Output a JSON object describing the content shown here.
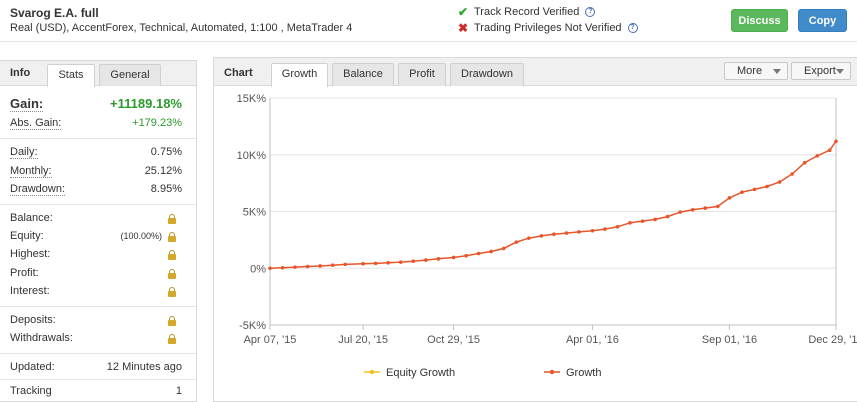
{
  "header": {
    "system_name": "Svarog E.A. full",
    "system_desc": "Real (USD), AccentForex, Technical, Automated, 1:100 , MetaTrader 4",
    "track_record": "Track Record Verified",
    "trading_privileges": "Trading Privileges Not Verified",
    "discuss_label": "Discuss",
    "copy_label": "Copy"
  },
  "left_panel": {
    "title": "Info",
    "tabs": [
      "Stats",
      "General"
    ],
    "gain_label": "Gain:",
    "gain_value": "+11189.18%",
    "abs_gain_label": "Abs. Gain:",
    "abs_gain_value": "+179.23%",
    "daily_label": "Daily:",
    "daily_value": "0.75%",
    "monthly_label": "Monthly:",
    "monthly_value": "25.12%",
    "drawdown_label": "Drawdown:",
    "drawdown_value": "8.95%",
    "balance_label": "Balance:",
    "equity_label": "Equity:",
    "equity_pct": "(100.00%)",
    "highest_label": "Highest:",
    "profit_label": "Profit:",
    "interest_label": "Interest:",
    "deposits_label": "Deposits:",
    "withdrawals_label": "Withdrawals:",
    "updated_label": "Updated:",
    "updated_value": "12 Minutes ago",
    "tracking_label": "Tracking",
    "tracking_value": "1"
  },
  "chart_panel": {
    "title": "Chart",
    "tabs": [
      "Growth",
      "Balance",
      "Profit",
      "Drawdown"
    ],
    "more_label": "More",
    "export_label": "Export"
  },
  "colors": {
    "growth_line": "#e8552a",
    "equity_line": "#f2c01e",
    "gain_green": "#2a9a2a",
    "discuss_bg": "#5cb85c",
    "copy_bg": "#428bca"
  },
  "chart_data": {
    "type": "line",
    "title": "",
    "xlabel": "",
    "ylabel": "",
    "y_tick_labels": [
      "15K%",
      "10K%",
      "5K%",
      "0%",
      "-5K%"
    ],
    "y_ticks": [
      15000,
      10000,
      5000,
      0,
      -5000
    ],
    "ylim": [
      -5000,
      15000
    ],
    "x_tick_labels": [
      "Apr 07, '15",
      "Jul 20, '15",
      "Oct 29, '15",
      "Apr 01, '16",
      "Sep 01, '16",
      "Dec 29, '16"
    ],
    "x_ticks": [
      "2015-04-07",
      "2015-07-20",
      "2015-10-29",
      "2016-04-01",
      "2016-09-01",
      "2016-12-29"
    ],
    "xlim": [
      "2015-04-07",
      "2016-12-29"
    ],
    "legend_position": "bottom",
    "series": [
      {
        "name": "Equity Growth",
        "marker": "circle",
        "x": [],
        "y": []
      },
      {
        "name": "Growth",
        "marker": "circle",
        "x": [
          "2015-04-07",
          "2015-04-21",
          "2015-05-05",
          "2015-05-19",
          "2015-06-02",
          "2015-06-16",
          "2015-06-30",
          "2015-07-20",
          "2015-08-03",
          "2015-08-17",
          "2015-08-31",
          "2015-09-14",
          "2015-09-28",
          "2015-10-12",
          "2015-10-29",
          "2015-11-12",
          "2015-11-26",
          "2015-12-10",
          "2015-12-24",
          "2016-01-07",
          "2016-01-21",
          "2016-02-04",
          "2016-02-18",
          "2016-03-03",
          "2016-03-17",
          "2016-04-01",
          "2016-04-15",
          "2016-04-29",
          "2016-05-13",
          "2016-05-27",
          "2016-06-10",
          "2016-06-24",
          "2016-07-08",
          "2016-07-22",
          "2016-08-05",
          "2016-08-19",
          "2016-09-01",
          "2016-09-15",
          "2016-09-29",
          "2016-10-13",
          "2016-10-27",
          "2016-11-10",
          "2016-11-24",
          "2016-12-08",
          "2016-12-22",
          "2016-12-29"
        ],
        "y": [
          0,
          40,
          100,
          150,
          200,
          270,
          340,
          400,
          430,
          480,
          540,
          620,
          720,
          830,
          950,
          1100,
          1300,
          1480,
          1750,
          2300,
          2650,
          2850,
          3000,
          3100,
          3200,
          3300,
          3450,
          3650,
          4000,
          4150,
          4300,
          4550,
          4950,
          5150,
          5300,
          5450,
          6200,
          6700,
          6950,
          7200,
          7600,
          8300,
          9300,
          9900,
          10400,
          11190
        ]
      }
    ]
  }
}
